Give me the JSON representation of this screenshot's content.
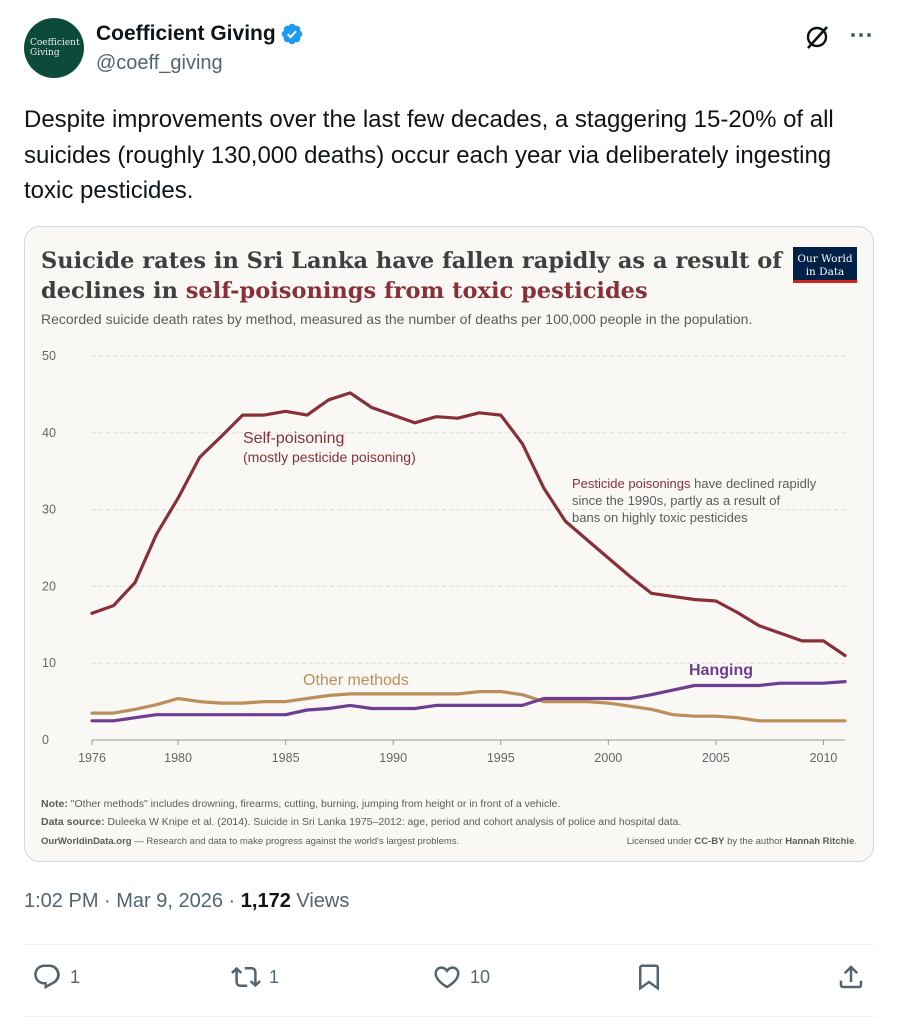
{
  "author": {
    "display_name": "Coefficient Giving",
    "handle": "@coeff_giving",
    "avatar_text_1": "Coefficient",
    "avatar_text_2": "Giving",
    "verified_color": "#1d9bf0"
  },
  "tweet": {
    "text": "Despite improvements over the last few decades, a staggering 15-20% of all suicides (roughly 130,000 deaths) occur each year via deliberately ingesting toxic pesticides."
  },
  "card": {
    "title_line1": "Suicide rates in Sri Lanka have fallen rapidly as a result of",
    "title_line2_prefix": "declines in ",
    "title_line2_highlight": "self-poisonings from toxic pesticides",
    "subtitle": "Recorded suicide death rates by method, measured as the number of deaths per 100,000 people in the population.",
    "logo_line1": "Our World",
    "logo_line2": "in Data",
    "label_self_1": "Self-poisoning",
    "label_self_2": "(mostly pesticide poisoning)",
    "annot_bold": "Pesticide poisonings",
    "annot_rest1": " have declined rapidly",
    "annot_line2": "since the 1990s, partly as a result of",
    "annot_line3": "bans on highly toxic pesticides",
    "label_other": "Other methods",
    "label_hanging": "Hanging",
    "note_bold": "Note:",
    "note_text": " \"Other methods\" includes drowning, firearms, cutting, burning, jumping from height or in front of a vehicle.",
    "source_bold": "Data source:",
    "source_text": " Duleeka W Knipe et al. (2014). Suicide in Sri Lanka 1975–2012: age, period and cohort analysis of police and hospital data.",
    "footer_site": "OurWorldinData.org",
    "footer_site_rest": " — Research and data to make progress against the world's largest problems.",
    "footer_license_pre": "Licensed under ",
    "footer_license_bold": "CC-BY",
    "footer_license_mid": " by the author ",
    "footer_license_author": "Hannah Ritchie",
    "footer_license_end": "."
  },
  "chart_data": {
    "type": "line",
    "title": "Suicide rates in Sri Lanka have fallen rapidly as a result of declines in self-poisonings from toxic pesticides",
    "subtitle": "Recorded suicide death rates by method, measured as the number of deaths per 100,000 people in the population.",
    "xlabel": "",
    "ylabel": "",
    "xlim": [
      1976,
      2011
    ],
    "ylim": [
      0,
      50
    ],
    "x_ticks": [
      1976,
      1980,
      1985,
      1990,
      1995,
      2000,
      2005,
      2010
    ],
    "y_ticks": [
      0,
      10,
      20,
      30,
      40,
      50
    ],
    "grid": true,
    "x": [
      1976,
      1977,
      1978,
      1979,
      1980,
      1981,
      1982,
      1983,
      1984,
      1985,
      1986,
      1987,
      1988,
      1989,
      1990,
      1991,
      1992,
      1993,
      1994,
      1995,
      1996,
      1997,
      1998,
      1999,
      2000,
      2001,
      2002,
      2003,
      2004,
      2005,
      2006,
      2007,
      2008,
      2009,
      2010,
      2011
    ],
    "series": [
      {
        "name": "Self-poisoning",
        "color": "#883039",
        "values": [
          16.5,
          17.5,
          20.5,
          26.8,
          31.5,
          36.8,
          39.5,
          42.3,
          42.3,
          42.8,
          42.3,
          44.3,
          45.2,
          43.3,
          42.3,
          41.3,
          42.1,
          41.9,
          42.6,
          42.3,
          38.6,
          32.8,
          28.5,
          26.1,
          23.7,
          21.3,
          19.1,
          18.7,
          18.3,
          18.1,
          16.6,
          14.9,
          13.9,
          12.9,
          12.9,
          11.0
        ]
      },
      {
        "name": "Other methods",
        "color": "#BC8E5A",
        "values": [
          3.5,
          3.5,
          4.0,
          4.6,
          5.4,
          5.0,
          4.8,
          4.8,
          5.0,
          5.0,
          5.4,
          5.8,
          6.0,
          6.0,
          6.0,
          6.0,
          6.0,
          6.0,
          6.3,
          6.3,
          5.9,
          5.0,
          5.0,
          5.0,
          4.8,
          4.4,
          4.0,
          3.3,
          3.1,
          3.1,
          2.9,
          2.5,
          2.5,
          2.5,
          2.5,
          2.5
        ]
      },
      {
        "name": "Hanging",
        "color": "#6D3E91",
        "values": [
          2.5,
          2.5,
          2.9,
          3.3,
          3.3,
          3.3,
          3.3,
          3.3,
          3.3,
          3.3,
          3.9,
          4.1,
          4.5,
          4.1,
          4.1,
          4.1,
          4.5,
          4.5,
          4.5,
          4.5,
          4.5,
          5.4,
          5.4,
          5.4,
          5.4,
          5.4,
          5.9,
          6.5,
          7.1,
          7.1,
          7.1,
          7.1,
          7.4,
          7.4,
          7.4,
          7.6
        ]
      }
    ]
  },
  "meta": {
    "time_date": "1:02 PM · Mar 9, 2026 · ",
    "views_count": "1,172",
    "views_label": " Views"
  },
  "actions": {
    "reply_count": "1",
    "repost_count": "1",
    "like_count": "10"
  }
}
